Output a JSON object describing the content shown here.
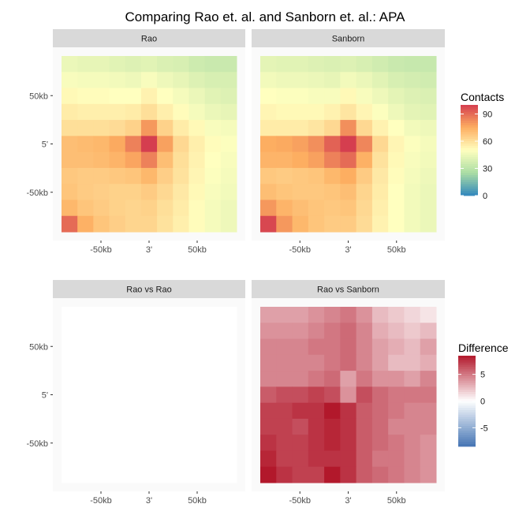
{
  "title": "Comparing Rao et. al. and Sanborn et. al.: APA",
  "chart_data": [
    {
      "type": "heatmap",
      "panel": "Rao",
      "x_ticks": [
        "-50kb",
        "3'",
        "50kb"
      ],
      "y_ticks": [
        "50kb",
        "5'",
        "-50kb"
      ],
      "colorbar": "contacts",
      "values": [
        [
          44,
          43,
          43,
          41,
          40,
          41,
          39,
          38,
          35,
          34,
          34
        ],
        [
          48,
          47,
          47,
          46,
          45,
          48,
          45,
          43,
          40,
          38,
          38
        ],
        [
          52,
          51,
          51,
          50,
          50,
          54,
          50,
          47,
          44,
          41,
          40
        ],
        [
          56,
          55,
          55,
          55,
          56,
          60,
          55,
          51,
          47,
          44,
          43
        ],
        [
          60,
          60,
          60,
          61,
          64,
          80,
          64,
          56,
          52,
          48,
          47
        ],
        [
          70,
          71,
          72,
          76,
          85,
          100,
          78,
          62,
          55,
          51,
          49
        ],
        [
          70,
          70,
          71,
          73,
          77,
          85,
          70,
          60,
          54,
          50,
          48
        ],
        [
          67,
          66,
          66,
          67,
          68,
          72,
          65,
          59,
          53,
          49,
          47
        ],
        [
          68,
          66,
          65,
          64,
          64,
          66,
          62,
          57,
          52,
          48,
          46
        ],
        [
          72,
          68,
          66,
          64,
          63,
          64,
          60,
          56,
          51,
          47,
          45
        ],
        [
          90,
          74,
          68,
          65,
          63,
          63,
          59,
          55,
          51,
          47,
          45
        ]
      ]
    },
    {
      "type": "heatmap",
      "panel": "Sanborn",
      "x_ticks": [
        "-50kb",
        "3'",
        "50kb"
      ],
      "y_ticks": [
        "50kb",
        "5'",
        "-50kb"
      ],
      "colorbar": "contacts",
      "values": [
        [
          42,
          41,
          41,
          40,
          39,
          40,
          38,
          36,
          34,
          33,
          33
        ],
        [
          46,
          45,
          45,
          44,
          43,
          46,
          44,
          41,
          38,
          37,
          36
        ],
        [
          50,
          49,
          49,
          48,
          48,
          52,
          48,
          45,
          42,
          40,
          39
        ],
        [
          53,
          52,
          52,
          52,
          54,
          58,
          53,
          49,
          45,
          42,
          41
        ],
        [
          56,
          56,
          56,
          58,
          62,
          82,
          62,
          54,
          50,
          46,
          45
        ],
        [
          75,
          76,
          78,
          82,
          92,
          100,
          84,
          62,
          53,
          49,
          47
        ],
        [
          73,
          73,
          75,
          78,
          85,
          90,
          74,
          59,
          52,
          48,
          46
        ],
        [
          67,
          66,
          67,
          68,
          72,
          75,
          66,
          57,
          51,
          47,
          45
        ],
        [
          70,
          68,
          67,
          67,
          68,
          70,
          63,
          56,
          50,
          46,
          44
        ],
        [
          80,
          73,
          70,
          68,
          67,
          68,
          62,
          55,
          50,
          46,
          44
        ],
        [
          98,
          80,
          72,
          68,
          66,
          66,
          61,
          54,
          50,
          46,
          44
        ]
      ]
    },
    {
      "type": "heatmap",
      "panel": "Rao vs Rao",
      "x_ticks": [
        "-50kb",
        "3'",
        "50kb"
      ],
      "y_ticks": [
        "50kb",
        "5'",
        "-50kb"
      ],
      "colorbar": "difference",
      "values": [
        [
          0,
          0,
          0,
          0,
          0,
          0,
          0,
          0,
          0,
          0,
          0
        ],
        [
          0,
          0,
          0,
          0,
          0,
          0,
          0,
          0,
          0,
          0,
          0
        ],
        [
          0,
          0,
          0,
          0,
          0,
          0,
          0,
          0,
          0,
          0,
          0
        ],
        [
          0,
          0,
          0,
          0,
          0,
          0,
          0,
          0,
          0,
          0,
          0
        ],
        [
          0,
          0,
          0,
          0,
          0,
          0,
          0,
          0,
          0,
          0,
          0
        ],
        [
          0,
          0,
          0,
          0,
          0,
          0,
          0,
          0,
          0,
          0,
          0
        ],
        [
          0,
          0,
          0,
          0,
          0,
          0,
          0,
          0,
          0,
          0,
          0
        ],
        [
          0,
          0,
          0,
          0,
          0,
          0,
          0,
          0,
          0,
          0,
          0
        ],
        [
          0,
          0,
          0,
          0,
          0,
          0,
          0,
          0,
          0,
          0,
          0
        ],
        [
          0,
          0,
          0,
          0,
          0,
          0,
          0,
          0,
          0,
          0,
          0
        ],
        [
          0,
          0,
          0,
          0,
          0,
          0,
          0,
          0,
          0,
          0,
          0
        ]
      ]
    },
    {
      "type": "heatmap",
      "panel": "Rao vs Sanborn",
      "x_ticks": [
        "-50kb",
        "3'",
        "50kb"
      ],
      "y_ticks": [
        "50kb",
        "5'",
        "-50kb"
      ],
      "colorbar": "difference",
      "values": [
        [
          3.5,
          3.5,
          3.5,
          4.0,
          4.5,
          5.0,
          4.0,
          2.5,
          2.0,
          1.5,
          1.0
        ],
        [
          4.0,
          4.0,
          4.0,
          4.5,
          5.0,
          5.5,
          4.5,
          3.0,
          2.5,
          2.0,
          2.5
        ],
        [
          4.5,
          4.5,
          4.5,
          5.0,
          5.0,
          5.5,
          4.5,
          3.5,
          3.0,
          2.5,
          3.5
        ],
        [
          4.5,
          4.5,
          4.5,
          4.5,
          5.0,
          5.5,
          4.5,
          3.5,
          2.5,
          2.5,
          3.0
        ],
        [
          4.5,
          4.5,
          4.5,
          5.0,
          5.5,
          3.5,
          5.0,
          4.0,
          4.0,
          3.5,
          4.5
        ],
        [
          6.0,
          6.5,
          6.5,
          7.0,
          6.5,
          4.0,
          6.5,
          5.5,
          5.0,
          5.0,
          5.0
        ],
        [
          7.0,
          7.0,
          7.5,
          7.5,
          8.5,
          7.5,
          6.0,
          5.5,
          5.0,
          4.5,
          4.5
        ],
        [
          7.0,
          7.0,
          6.5,
          7.5,
          8.0,
          7.5,
          6.0,
          5.5,
          4.5,
          4.5,
          4.5
        ],
        [
          7.5,
          7.0,
          7.0,
          7.5,
          8.0,
          7.5,
          6.0,
          5.5,
          5.0,
          4.5,
          4.0
        ],
        [
          8.0,
          7.0,
          7.0,
          7.5,
          7.5,
          7.5,
          6.0,
          5.0,
          5.0,
          4.5,
          4.0
        ],
        [
          8.5,
          7.5,
          7.0,
          7.0,
          8.5,
          7.5,
          6.0,
          5.5,
          5.0,
          4.5,
          4.0
        ]
      ]
    }
  ],
  "legends": {
    "contacts": {
      "title": "Contacts",
      "min": 0,
      "max": 100,
      "breaks": [
        0,
        30,
        60,
        90
      ],
      "labels": [
        "0",
        "30",
        "60",
        "90"
      ],
      "palette": [
        "#3288bd",
        "#abdda4",
        "#ffffbf",
        "#fdae61",
        "#d53e4f"
      ]
    },
    "difference": {
      "title": "Difference",
      "min": -8.5,
      "max": 8.5,
      "breaks": [
        -5,
        0,
        5
      ],
      "labels": [
        "-5",
        "0",
        "5"
      ],
      "palette": [
        "#4575b4",
        "#ffffff",
        "#b2182b"
      ]
    }
  }
}
